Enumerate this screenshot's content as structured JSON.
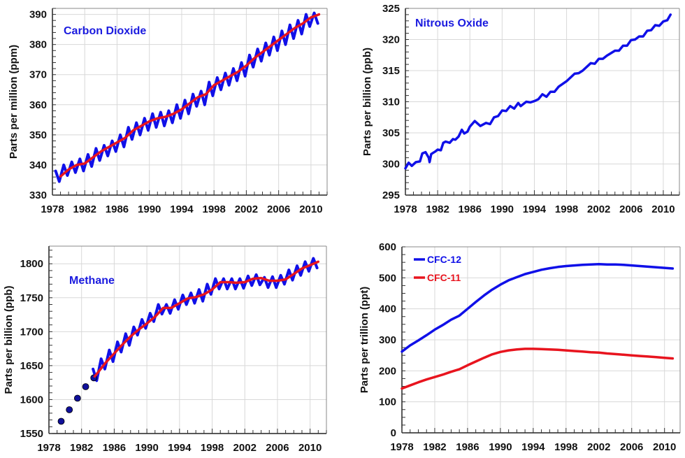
{
  "chart_data": [
    {
      "id": "co2",
      "type": "line",
      "title": "Carbon Dioxide",
      "xlabel": "",
      "ylabel": "Parts per million (ppm)",
      "xlim": [
        1978,
        2012
      ],
      "ylim": [
        330,
        392
      ],
      "grid": true,
      "x_ticks": [
        "1978",
        "1982",
        "1986",
        "1990",
        "1994",
        "1998",
        "2002",
        "2006",
        "2010"
      ],
      "y_ticks": [
        "330",
        "340",
        "350",
        "360",
        "370",
        "380",
        "390"
      ],
      "colors": {
        "title": "#1a1adf",
        "seasonal": "#1010e8",
        "trend": "#e8141e"
      },
      "seasonal": {
        "x": [
          1979,
          1980,
          1981,
          1982,
          1983,
          1984,
          1985,
          1986,
          1987,
          1988,
          1989,
          1990,
          1991,
          1992,
          1993,
          1994,
          1995,
          1996,
          1997,
          1998,
          1999,
          2000,
          2001,
          2002,
          2003,
          2004,
          2005,
          2006,
          2007,
          2008,
          2009,
          2010,
          2011
        ],
        "max": [
          338,
          340,
          341,
          342,
          343.5,
          345.5,
          346.5,
          348,
          350,
          352.5,
          354,
          355.5,
          357,
          357.5,
          358,
          360,
          361.5,
          363.5,
          364.5,
          367.5,
          369,
          370.5,
          372,
          374,
          376.5,
          378.5,
          380.5,
          382.5,
          384.5,
          386.5,
          388,
          390,
          390.5
        ],
        "min": [
          334.5,
          336.5,
          337.5,
          338,
          339.5,
          341.5,
          343,
          344.5,
          346,
          348.5,
          350,
          351.5,
          352.5,
          353,
          354,
          355.5,
          357,
          359.5,
          360,
          363,
          365,
          366.5,
          368,
          369.5,
          372.5,
          374.5,
          376.5,
          378,
          380,
          382,
          383.5,
          386,
          387
        ]
      },
      "trend": {
        "x": [
          1979,
          1980,
          1981,
          1982,
          1983,
          1984,
          1985,
          1986,
          1987,
          1988,
          1989,
          1990,
          1991,
          1992,
          1993,
          1994,
          1995,
          1996,
          1997,
          1998,
          1999,
          2000,
          2001,
          2002,
          2003,
          2004,
          2005,
          2006,
          2007,
          2008,
          2009,
          2010,
          2011
        ],
        "y": [
          336.2,
          338.5,
          340,
          340.5,
          342.5,
          344.5,
          346,
          347.5,
          349,
          351.5,
          353,
          354.5,
          355.5,
          356,
          357,
          358.5,
          360.5,
          362.5,
          363.5,
          366.5,
          368,
          369.5,
          371,
          373,
          375.5,
          377.5,
          379.5,
          381.5,
          383.5,
          385.5,
          387,
          389,
          390
        ]
      }
    },
    {
      "id": "n2o",
      "type": "line",
      "title": "Nitrous Oxide",
      "xlabel": "",
      "ylabel": "Parts per billion (ppb)",
      "xlim": [
        1978,
        2012
      ],
      "ylim": [
        295,
        325
      ],
      "grid": true,
      "x_ticks": [
        "1978",
        "1982",
        "1986",
        "1990",
        "1994",
        "1998",
        "2002",
        "2006",
        "2010"
      ],
      "y_ticks": [
        "295",
        "300",
        "305",
        "310",
        "315",
        "320",
        "325"
      ],
      "colors": {
        "title": "#1a1adf",
        "line": "#1010e8"
      },
      "series": {
        "x": [
          1978,
          1978.4,
          1978.8,
          1979.3,
          1979.8,
          1980.1,
          1980.5,
          1980.9,
          1981,
          1981.2,
          1981.7,
          1982,
          1982.4,
          1982.7,
          1983,
          1983.5,
          1983.9,
          1984.2,
          1984.6,
          1985,
          1985.3,
          1985.7,
          1986,
          1986.6,
          1987.3,
          1988,
          1988.5,
          1989,
          1989.5,
          1990,
          1990.5,
          1991,
          1991.5,
          1992,
          1992.3,
          1993,
          1993.5,
          1994,
          1994.5,
          1995,
          1995.5,
          1996,
          1996.5,
          1997,
          1998,
          1999,
          1999.5,
          2000,
          2001,
          2001.5,
          2002,
          2002.5,
          2003,
          2004,
          2004.5,
          2005,
          2005.5,
          2006,
          2006.5,
          2007,
          2007.5,
          2008,
          2008.5,
          2009,
          2009.5,
          2010,
          2010.5,
          2010.9
        ],
        "y": [
          299.3,
          300.2,
          299.7,
          300.3,
          300.4,
          301.7,
          301.9,
          301,
          300.3,
          301.6,
          302,
          302.3,
          302.2,
          303.4,
          303.6,
          303.4,
          304,
          303.9,
          304.4,
          305.5,
          304.9,
          305.2,
          306,
          306.9,
          306.1,
          306.6,
          306.4,
          307.5,
          307.7,
          308.6,
          308.5,
          309.3,
          308.9,
          309.8,
          309.3,
          310,
          309.9,
          310.1,
          310.4,
          311.2,
          310.8,
          311.6,
          311.6,
          312.4,
          313.3,
          314.5,
          314.6,
          315,
          316.2,
          316.1,
          316.9,
          316.9,
          317.4,
          318.2,
          318.2,
          319,
          319,
          319.9,
          320,
          320.5,
          320.5,
          321.4,
          321.5,
          322.3,
          322.2,
          322.9,
          323.1,
          324
        ]
      }
    },
    {
      "id": "ch4",
      "type": "line",
      "title": "Methane",
      "xlabel": "",
      "ylabel": "Parts per billion (ppb)",
      "xlim": [
        1978,
        2012
      ],
      "ylim": [
        1550,
        1826
      ],
      "grid": true,
      "x_ticks": [
        "1978",
        "1982",
        "1986",
        "1990",
        "1994",
        "1998",
        "2002",
        "2006",
        "2010"
      ],
      "y_ticks": [
        "1550",
        "1600",
        "1650",
        "1700",
        "1750",
        "1800"
      ],
      "colors": {
        "title": "#1a1adf",
        "seasonal": "#1010e8",
        "trend": "#e8141e",
        "points": "#10109a"
      },
      "early_points": {
        "x": [
          1979.5,
          1980.5,
          1981.5,
          1982.5,
          1983.5
        ],
        "y": [
          1568,
          1585,
          1602,
          1619,
          1632
        ]
      },
      "seasonal": {
        "x": [
          1984,
          1985,
          1986,
          1987,
          1988,
          1989,
          1990,
          1991,
          1992,
          1993,
          1994,
          1995,
          1996,
          1997,
          1998,
          1999,
          2000,
          2001,
          2002,
          2003,
          2004,
          2005,
          2006,
          2007,
          2008,
          2009,
          2010,
          2011
        ],
        "max": [
          1645,
          1660,
          1673,
          1685,
          1697,
          1707,
          1718,
          1727,
          1740,
          1740,
          1747,
          1754,
          1757,
          1762,
          1770,
          1778,
          1778,
          1778,
          1778,
          1782,
          1784,
          1780,
          1781,
          1783,
          1791,
          1797,
          1803,
          1808
        ],
        "min": [
          1628,
          1645,
          1656,
          1670,
          1680,
          1695,
          1705,
          1715,
          1726,
          1727,
          1733,
          1740,
          1742,
          1745,
          1755,
          1763,
          1763,
          1763,
          1764,
          1768,
          1769,
          1765,
          1765,
          1770,
          1776,
          1783,
          1789,
          1794
        ]
      },
      "trend": {
        "x": [
          1983.6,
          1984,
          1985,
          1986,
          1987,
          1988,
          1989,
          1990,
          1991,
          1992,
          1993,
          1994,
          1995,
          1996,
          1997,
          1998,
          1999,
          2000,
          2001,
          2002,
          2003,
          2004,
          2005,
          2006,
          2007,
          2008,
          2009,
          2010,
          2011
        ],
        "y": [
          1634,
          1640,
          1655,
          1668,
          1681,
          1693,
          1703,
          1712,
          1722,
          1735,
          1735,
          1742,
          1749,
          1751,
          1755,
          1762,
          1773,
          1773,
          1772,
          1773,
          1778,
          1779,
          1775,
          1775,
          1777,
          1785,
          1793,
          1798,
          1803
        ]
      }
    },
    {
      "id": "cfc",
      "type": "line",
      "title": "",
      "xlabel": "",
      "ylabel": "Parts per trillion (ppt)",
      "xlim": [
        1978,
        2011.9
      ],
      "ylim": [
        0,
        600
      ],
      "grid": true,
      "legend": "top-left",
      "x_ticks": [
        "1978",
        "1982",
        "1986",
        "1990",
        "1994",
        "1998",
        "2002",
        "2006",
        "2010"
      ],
      "y_ticks": [
        "0",
        "100",
        "200",
        "300",
        "400",
        "500",
        "600"
      ],
      "series": [
        {
          "name": "CFC-12",
          "color": "#1010e8",
          "x": [
            1978,
            1979,
            1980,
            1981,
            1982,
            1983,
            1984,
            1985,
            1986,
            1987,
            1988,
            1989,
            1990,
            1991,
            1992,
            1993,
            1994,
            1995,
            1996,
            1997,
            1998,
            1999,
            2000,
            2001,
            2002,
            2003,
            2004,
            2005,
            2006,
            2007,
            2008,
            2009,
            2010,
            2011
          ],
          "y": [
            262,
            282,
            298,
            315,
            333,
            348,
            365,
            378,
            400,
            422,
            443,
            462,
            478,
            492,
            502,
            512,
            519,
            526,
            531,
            535,
            538,
            540,
            542,
            543,
            544,
            543,
            543,
            542,
            540,
            538,
            536,
            534,
            532,
            530
          ]
        },
        {
          "name": "CFC-11",
          "color": "#e8141e",
          "x": [
            1978,
            1979,
            1980,
            1981,
            1982,
            1983,
            1984,
            1985,
            1986,
            1987,
            1988,
            1989,
            1990,
            1991,
            1992,
            1993,
            1994,
            1995,
            1996,
            1997,
            1998,
            1999,
            2000,
            2001,
            2002,
            2003,
            2004,
            2005,
            2006,
            2007,
            2008,
            2009,
            2010,
            2011
          ],
          "y": [
            143,
            153,
            163,
            172,
            180,
            188,
            197,
            205,
            218,
            230,
            242,
            253,
            261,
            266,
            269,
            271,
            271,
            270,
            269,
            268,
            266,
            264,
            262,
            260,
            259,
            256,
            254,
            252,
            250,
            248,
            246,
            244,
            242,
            240
          ]
        }
      ]
    }
  ]
}
